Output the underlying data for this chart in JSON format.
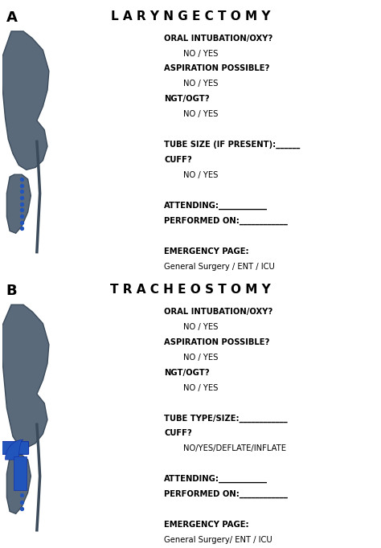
{
  "bg_color": "#ffffff",
  "anatomy_color": "#5a6a7a",
  "anatomy_edge_color": "#3a4a5a",
  "blue_color": "#2255bb",
  "panel_a": {
    "label": "A",
    "title": "L A R Y N G E C T O M Y",
    "lines": [
      {
        "text": "ORAL INTUBATION/OXY?",
        "indent": false,
        "bold": true
      },
      {
        "text": "NO / YES",
        "indent": true,
        "bold": false
      },
      {
        "text": "ASPIRATION POSSIBLE?",
        "indent": false,
        "bold": true
      },
      {
        "text": "NO / YES",
        "indent": true,
        "bold": false
      },
      {
        "text": "NGT/OGT?",
        "indent": false,
        "bold": true
      },
      {
        "text": "NO / YES",
        "indent": true,
        "bold": false
      },
      {
        "text": "",
        "indent": false,
        "bold": false
      },
      {
        "text": "TUBE SIZE (IF PRESENT):______",
        "indent": false,
        "bold": true
      },
      {
        "text": "CUFF?",
        "indent": false,
        "bold": true
      },
      {
        "text": "NO / YES",
        "indent": true,
        "bold": false
      },
      {
        "text": "",
        "indent": false,
        "bold": false
      },
      {
        "text": "ATTENDING:____________",
        "indent": false,
        "bold": true
      },
      {
        "text": "PERFORMED ON:____________",
        "indent": false,
        "bold": true
      },
      {
        "text": "",
        "indent": false,
        "bold": false
      },
      {
        "text": "EMERGENCY PAGE:",
        "indent": false,
        "bold": true
      },
      {
        "text": "General Surgery / ENT / ICU",
        "indent": false,
        "bold": false
      }
    ]
  },
  "panel_b": {
    "label": "B",
    "title": "T R A C H E O S T O M Y",
    "lines": [
      {
        "text": "ORAL INTUBATION/OXY?",
        "indent": false,
        "bold": true
      },
      {
        "text": "NO / YES",
        "indent": true,
        "bold": false
      },
      {
        "text": "ASPIRATION POSSIBLE?",
        "indent": false,
        "bold": true
      },
      {
        "text": "NO / YES",
        "indent": true,
        "bold": false
      },
      {
        "text": "NGT/OGT?",
        "indent": false,
        "bold": true
      },
      {
        "text": "NO / YES",
        "indent": true,
        "bold": false
      },
      {
        "text": "",
        "indent": false,
        "bold": false
      },
      {
        "text": "TUBE TYPE/SIZE:____________",
        "indent": false,
        "bold": true
      },
      {
        "text": "CUFF?",
        "indent": false,
        "bold": true
      },
      {
        "text": "NO/YES/DEFLATE/INFLATE",
        "indent": true,
        "bold": false
      },
      {
        "text": "",
        "indent": false,
        "bold": false
      },
      {
        "text": "ATTENDING:____________",
        "indent": false,
        "bold": true
      },
      {
        "text": "PERFORMED ON:____________",
        "indent": false,
        "bold": true
      },
      {
        "text": "",
        "indent": false,
        "bold": false
      },
      {
        "text": "EMERGENCY PAGE:",
        "indent": false,
        "bold": true
      },
      {
        "text": "General Surgery/ ENT / ICU",
        "indent": false,
        "bold": false
      }
    ]
  }
}
